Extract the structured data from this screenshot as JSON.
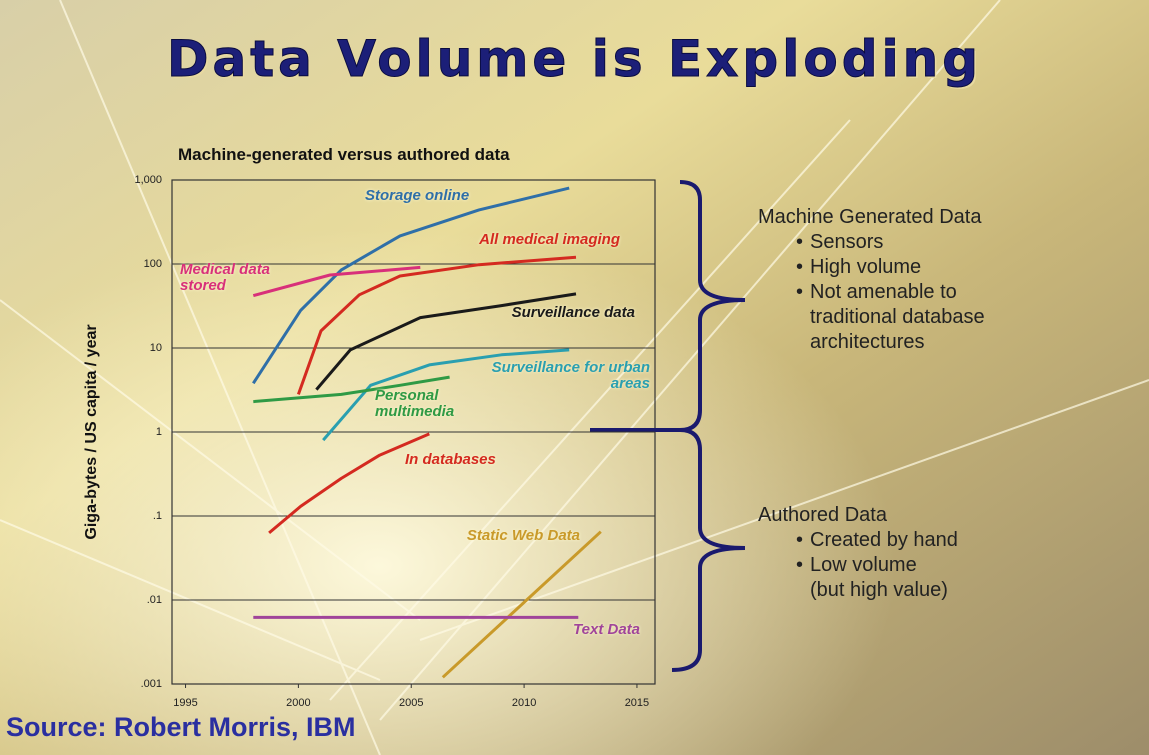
{
  "slide": {
    "title": "Data Volume is Exploding",
    "source": "Source: Robert Morris, IBM"
  },
  "chart_data": {
    "type": "line",
    "title": "Machine-generated versus authored data",
    "y_label": "Giga-bytes / US capita / year",
    "log_scale_y": true,
    "grid": true,
    "xlim": [
      1994.4,
      2015.8
    ],
    "xticks": [
      1995,
      2000,
      2005,
      2010,
      2015
    ],
    "ylim": [
      0.001,
      1000
    ],
    "yticks": [
      {
        "value": 1000,
        "label": "1,000"
      },
      100,
      10,
      1,
      {
        "value": 0.1,
        "label": ".1"
      },
      {
        "value": 0.01,
        "label": ".01"
      },
      {
        "value": 0.001,
        "label": ".001"
      }
    ],
    "series": [
      {
        "name": "Storage online",
        "color": "#2f6fa8",
        "x": [
          1998,
          2000.1,
          2001.9,
          2004.5,
          2008,
          2012
        ],
        "values": [
          3.8,
          28,
          85,
          216,
          440,
          800
        ]
      },
      {
        "name": "All medical imaging",
        "color": "#d42a20",
        "x": [
          2000,
          2001,
          2002.7,
          2004.5,
          2008,
          2012.3
        ],
        "values": [
          2.8,
          16,
          43,
          72,
          98,
          120
        ]
      },
      {
        "name": "Medical data stored",
        "color": "#d8307a",
        "x": [
          1998,
          2001.4,
          2005.4
        ],
        "values": [
          42,
          74,
          91
        ]
      },
      {
        "name": "Surveillance data",
        "color": "#1a1a1a",
        "x": [
          2000.8,
          2002.3,
          2005.4,
          2009,
          2012.3
        ],
        "values": [
          3.2,
          9.5,
          23,
          32,
          44
        ]
      },
      {
        "name": "Surveillance for urban areas",
        "color": "#2a9fb0",
        "x": [
          2001.1,
          2003.2,
          2005.8,
          2009,
          2012
        ],
        "values": [
          0.8,
          3.6,
          6.3,
          8.3,
          9.5
        ]
      },
      {
        "name": "Personal multimedia",
        "color": "#2f9a45",
        "x": [
          1998,
          2001.9,
          2004.5,
          2006.7
        ],
        "values": [
          2.3,
          2.8,
          3.6,
          4.5
        ]
      },
      {
        "name": "In databases",
        "color": "#d42a20",
        "x": [
          1998.7,
          2000.1,
          2001.9,
          2003.6,
          2005.8
        ],
        "values": [
          0.063,
          0.13,
          0.28,
          0.53,
          0.95
        ]
      },
      {
        "name": "Static Web Data",
        "color": "#c99a2a",
        "x": [
          2006.4,
          2013.4
        ],
        "values": [
          0.0012,
          0.065
        ]
      },
      {
        "name": "Text Data",
        "color": "#a0449a",
        "x": [
          1998,
          2012.4
        ],
        "values": [
          0.0062,
          0.0062
        ]
      }
    ]
  },
  "notes": {
    "groups": [
      {
        "heading": "Machine Generated Data",
        "bullets": [
          {
            "text": "Sensors"
          },
          {
            "text": "High volume"
          },
          {
            "text": "Not amenable to traditional database architectures"
          }
        ]
      },
      {
        "heading": "Authored Data",
        "bullets": [
          {
            "text": "Created by hand"
          },
          {
            "text": "Low volume",
            "note": "(but high value)"
          }
        ]
      }
    ]
  }
}
